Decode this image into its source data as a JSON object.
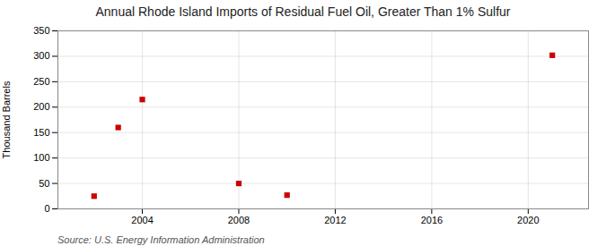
{
  "chart_data": {
    "type": "scatter",
    "title": "Annual Rhode Island Imports of Residual Fuel Oil, Greater Than 1% Sulfur",
    "ylabel": "Thousand Barrels",
    "annotations": [
      "Source: U.S. Energy Information Administration"
    ],
    "x": [
      2002,
      2003,
      2004,
      2008,
      2010,
      2021
    ],
    "values": [
      25,
      160,
      215,
      50,
      27,
      302
    ],
    "color": "#cc0000",
    "marker": "square",
    "xlim": [
      2000.5,
      2022.5
    ],
    "xticks": [
      2004,
      2008,
      2012,
      2016,
      2020
    ],
    "ylim": [
      0,
      350
    ],
    "yticks": [
      0,
      50,
      100,
      150,
      200,
      250,
      300,
      350
    ],
    "grid": true
  }
}
